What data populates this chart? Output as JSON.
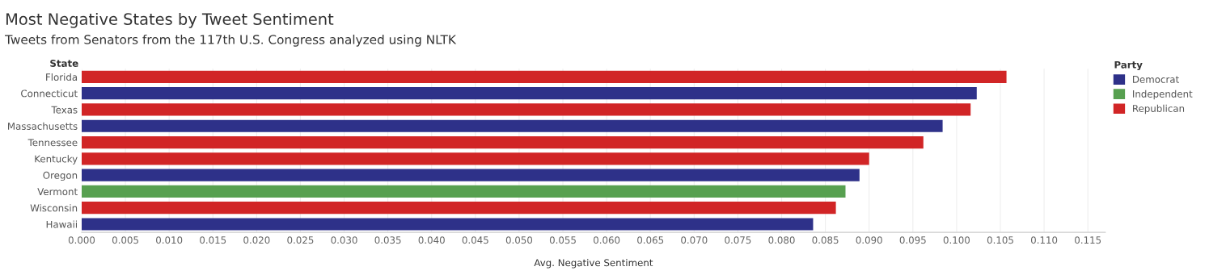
{
  "chart_data": {
    "type": "bar",
    "orientation": "horizontal",
    "title": "Most Negative States by Tweet Sentiment",
    "subtitle": "Tweets from Senators from the 117th U.S. Congress analyzed using NLTK",
    "xlabel": "Avg. Negative Sentiment",
    "ylabel": "State",
    "legend_title": "Party",
    "legend": "top right",
    "grid": "x",
    "categories": [
      "Florida",
      "Connecticut",
      "Texas",
      "Massachusetts",
      "Tennessee",
      "Kentucky",
      "Oregon",
      "Vermont",
      "Wisconsin",
      "Hawaii"
    ],
    "series": [
      {
        "name": "Democrat",
        "color": "#2e3189",
        "values": [
          null,
          0.1023,
          null,
          0.0984,
          null,
          null,
          0.0889,
          null,
          null,
          0.0836
        ]
      },
      {
        "name": "Independent",
        "color": "#57a050",
        "values": [
          null,
          null,
          null,
          null,
          null,
          null,
          null,
          0.0873,
          null,
          null
        ]
      },
      {
        "name": "Republican",
        "color": "#d12526",
        "values": [
          0.1057,
          null,
          0.1016,
          null,
          0.0962,
          0.09,
          null,
          null,
          0.0862,
          null
        ]
      }
    ],
    "xlim": [
      0,
      0.117
    ],
    "xticks": [
      {
        "value": 0,
        "label": "0.000"
      },
      {
        "value": 0.005,
        "label": "0.005"
      },
      {
        "value": 0.01,
        "label": "0.010"
      },
      {
        "value": 0.015,
        "label": "0.015"
      },
      {
        "value": 0.02,
        "label": "0.020"
      },
      {
        "value": 0.025,
        "label": "0.025"
      },
      {
        "value": 0.03,
        "label": "0.030"
      },
      {
        "value": 0.035,
        "label": "0.035"
      },
      {
        "value": 0.04,
        "label": "0.040"
      },
      {
        "value": 0.045,
        "label": "0.045"
      },
      {
        "value": 0.05,
        "label": "0.050"
      },
      {
        "value": 0.055,
        "label": "0.055"
      },
      {
        "value": 0.06,
        "label": "0.060"
      },
      {
        "value": 0.065,
        "label": "0.065"
      },
      {
        "value": 0.07,
        "label": "0.070"
      },
      {
        "value": 0.075,
        "label": "0.075"
      },
      {
        "value": 0.08,
        "label": "0.080"
      },
      {
        "value": 0.085,
        "label": "0.085"
      },
      {
        "value": 0.09,
        "label": "0.090"
      },
      {
        "value": 0.095,
        "label": "0.095"
      },
      {
        "value": 0.1,
        "label": "0.100"
      },
      {
        "value": 0.105,
        "label": "0.105"
      },
      {
        "value": 0.11,
        "label": "0.110"
      },
      {
        "value": 0.115,
        "label": "0.115"
      }
    ]
  }
}
